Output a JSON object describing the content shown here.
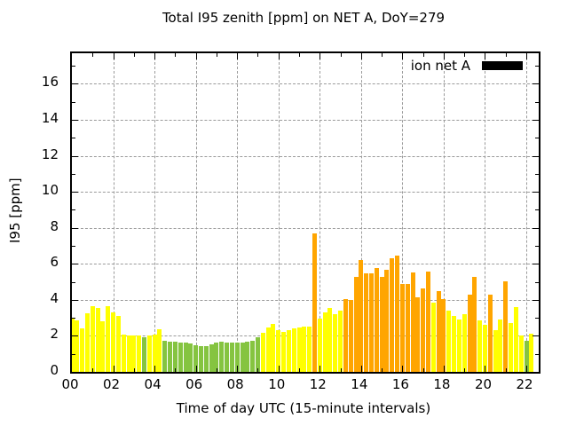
{
  "title": "Total I95 zenith [ppm] on NET A, DoY=279",
  "legend": {
    "label": "ion net A",
    "swatch_color": "#000000"
  },
  "colors": {
    "background": "#FFFFFF",
    "text": "#000000",
    "grid": "#9B9B9B",
    "border": "#000000",
    "bar_yellow": "#FFFF00",
    "bar_green": "#85C440",
    "bar_orange": "#FFA500"
  },
  "chart_data": {
    "type": "bar",
    "title": "Total I95 zenith [ppm] on NET A, DoY=279",
    "xlabel": "Time of day UTC (15-minute intervals)",
    "ylabel": "I95 [ppm]",
    "legend_entries": [
      "ion net A"
    ],
    "legend_position": "top-right-inside",
    "grid": "dashed",
    "interval_minutes": 15,
    "xlim_hours": [
      0,
      22.6
    ],
    "ylim": [
      0,
      17.7
    ],
    "x_tick_labels": [
      "00",
      "02",
      "04",
      "06",
      "08",
      "10",
      "12",
      "14",
      "16",
      "18",
      "20",
      "22"
    ],
    "x_tick_hours": [
      0,
      2,
      4,
      6,
      8,
      10,
      12,
      14,
      16,
      18,
      20,
      22
    ],
    "y_ticks": [
      0,
      2,
      4,
      6,
      8,
      10,
      12,
      14,
      16
    ],
    "color_key": {
      "Y": "#FFFF00",
      "G": "#85C440",
      "O": "#FFA500"
    },
    "series": [
      {
        "name": "ion net A",
        "times": [
          "00:00",
          "00:15",
          "00:30",
          "00:45",
          "01:00",
          "01:15",
          "01:30",
          "01:45",
          "02:00",
          "02:15",
          "02:30",
          "02:45",
          "03:00",
          "03:15",
          "03:30",
          "03:45",
          "04:00",
          "04:15",
          "04:30",
          "04:45",
          "05:00",
          "05:15",
          "05:30",
          "05:45",
          "06:00",
          "06:15",
          "06:30",
          "06:45",
          "07:00",
          "07:15",
          "07:30",
          "07:45",
          "08:00",
          "08:15",
          "08:30",
          "08:45",
          "09:00",
          "09:15",
          "09:30",
          "09:45",
          "10:00",
          "10:15",
          "10:30",
          "10:45",
          "11:00",
          "11:15",
          "11:30",
          "11:45",
          "12:00",
          "12:15",
          "12:30",
          "12:45",
          "13:00",
          "13:15",
          "13:30",
          "13:45",
          "14:00",
          "14:15",
          "14:30",
          "14:45",
          "15:00",
          "15:15",
          "15:30",
          "15:45",
          "16:00",
          "16:15",
          "16:30",
          "16:45",
          "17:00",
          "17:15",
          "17:30",
          "17:45",
          "18:00",
          "18:15",
          "18:30",
          "18:45",
          "19:00",
          "19:15",
          "19:30",
          "19:45",
          "20:00",
          "20:15",
          "20:30",
          "20:45",
          "21:00",
          "21:15",
          "21:30",
          "21:45",
          "22:00",
          "22:15"
        ],
        "values": [
          3.0,
          2.85,
          2.4,
          3.25,
          3.65,
          3.55,
          2.8,
          3.65,
          3.3,
          3.1,
          2.05,
          2.0,
          2.0,
          2.0,
          1.9,
          2.0,
          2.05,
          2.35,
          1.75,
          1.7,
          1.7,
          1.65,
          1.65,
          1.6,
          1.5,
          1.45,
          1.45,
          1.55,
          1.65,
          1.7,
          1.65,
          1.65,
          1.65,
          1.65,
          1.7,
          1.75,
          1.9,
          2.15,
          2.45,
          2.65,
          2.3,
          2.2,
          2.3,
          2.4,
          2.45,
          2.5,
          2.5,
          7.7,
          2.95,
          3.3,
          3.55,
          3.2,
          3.4,
          4.05,
          4.0,
          5.3,
          6.2,
          5.45,
          5.45,
          5.75,
          5.3,
          5.65,
          6.3,
          6.45,
          4.9,
          4.9,
          5.5,
          4.15,
          4.65,
          5.55,
          3.85,
          4.5,
          4.05,
          3.4,
          3.1,
          2.9,
          3.2,
          4.3,
          5.3,
          2.85,
          2.6,
          4.3,
          2.3,
          2.9,
          5.05,
          2.7,
          3.6,
          2.0,
          1.75,
          2.1
        ],
        "bar_colors": [
          "Y",
          "Y",
          "Y",
          "Y",
          "Y",
          "Y",
          "Y",
          "Y",
          "Y",
          "Y",
          "Y",
          "Y",
          "Y",
          "Y",
          "G",
          "Y",
          "Y",
          "Y",
          "G",
          "G",
          "G",
          "G",
          "G",
          "G",
          "G",
          "G",
          "G",
          "G",
          "G",
          "G",
          "G",
          "G",
          "G",
          "G",
          "G",
          "G",
          "G",
          "Y",
          "Y",
          "Y",
          "Y",
          "Y",
          "Y",
          "Y",
          "Y",
          "Y",
          "Y",
          "O",
          "Y",
          "Y",
          "Y",
          "Y",
          "Y",
          "O",
          "O",
          "O",
          "O",
          "O",
          "O",
          "O",
          "O",
          "O",
          "O",
          "O",
          "O",
          "O",
          "O",
          "O",
          "O",
          "O",
          "Y",
          "O",
          "O",
          "Y",
          "Y",
          "Y",
          "Y",
          "O",
          "O",
          "Y",
          "Y",
          "O",
          "Y",
          "Y",
          "O",
          "Y",
          "Y",
          "Y",
          "G",
          "Y"
        ]
      }
    ]
  }
}
